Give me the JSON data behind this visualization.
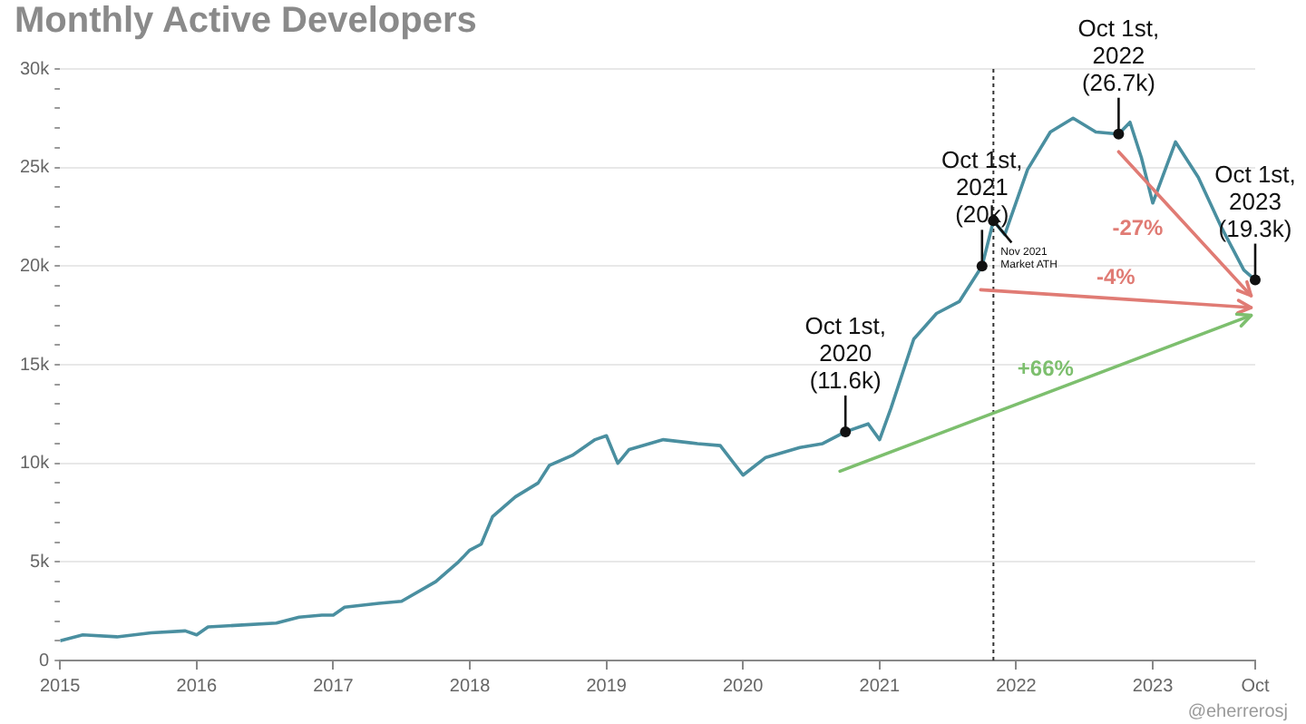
{
  "chart_data": {
    "type": "line",
    "title": "Monthly Active Developers",
    "x": [
      "2015-01",
      "2015-03",
      "2015-06",
      "2015-09",
      "2015-12",
      "2016-01",
      "2016-02",
      "2016-05",
      "2016-08",
      "2016-10",
      "2016-12",
      "2017-01",
      "2017-02",
      "2017-05",
      "2017-07",
      "2017-10",
      "2017-12",
      "2018-01",
      "2018-02",
      "2018-03",
      "2018-05",
      "2018-07",
      "2018-08",
      "2018-10",
      "2018-12",
      "2019-01",
      "2019-02",
      "2019-03",
      "2019-06",
      "2019-09",
      "2019-11",
      "2020-01",
      "2020-03",
      "2020-06",
      "2020-08",
      "2020-10",
      "2020-12",
      "2021-01",
      "2021-02",
      "2021-04",
      "2021-06",
      "2021-08",
      "2021-10",
      "2021-11",
      "2021-12",
      "2022-02",
      "2022-04",
      "2022-06",
      "2022-08",
      "2022-10",
      "2022-11",
      "2022-12",
      "2023-01",
      "2023-03",
      "2023-05",
      "2023-07",
      "2023-09",
      "2023-10"
    ],
    "series": [
      {
        "color": "#4a8fa0",
        "values": [
          1000,
          1300,
          1200,
          1400,
          1500,
          1300,
          1700,
          1800,
          1900,
          2200,
          2300,
          2300,
          2700,
          2900,
          3000,
          4000,
          5000,
          5600,
          5900,
          7300,
          8300,
          9000,
          9900,
          10400,
          11200,
          11400,
          10000,
          10700,
          11200,
          11000,
          10900,
          9400,
          10300,
          10800,
          11000,
          11600,
          12000,
          11200,
          12800,
          16300,
          17600,
          18200,
          20000,
          22300,
          21600,
          24900,
          26800,
          27500,
          26800,
          26700,
          27300,
          25500,
          23200,
          26300,
          24500,
          22000,
          19800,
          19300
        ]
      }
    ],
    "xlim": [
      "2015",
      "2023-10"
    ],
    "xticks": [
      "2015",
      "2016",
      "2017",
      "2018",
      "2019",
      "2020",
      "2021",
      "2022",
      "2023",
      {
        "value": "2023-10",
        "label": "Oct"
      }
    ],
    "ylim": [
      0,
      30000
    ],
    "yticks": [
      0,
      {
        "value": 1000,
        "label": null
      },
      {
        "value": 2000,
        "label": null
      },
      {
        "value": 3000,
        "label": null
      },
      {
        "value": 4000,
        "label": null
      },
      {
        "value": 5000,
        "label": "5k"
      },
      {
        "value": 6000,
        "label": null
      },
      {
        "value": 7000,
        "label": null
      },
      {
        "value": 8000,
        "label": null
      },
      {
        "value": 9000,
        "label": null
      },
      {
        "value": 10000,
        "label": "10k"
      },
      {
        "value": 11000,
        "label": null
      },
      {
        "value": 12000,
        "label": null
      },
      {
        "value": 13000,
        "label": null
      },
      {
        "value": 14000,
        "label": null
      },
      {
        "value": 15000,
        "label": "15k"
      },
      {
        "value": 16000,
        "label": null
      },
      {
        "value": 17000,
        "label": null
      },
      {
        "value": 18000,
        "label": null
      },
      {
        "value": 19000,
        "label": null
      },
      {
        "value": 20000,
        "label": "20k"
      },
      {
        "value": 21000,
        "label": null
      },
      {
        "value": 22000,
        "label": null
      },
      {
        "value": 23000,
        "label": null
      },
      {
        "value": 24000,
        "label": null
      },
      {
        "value": 25000,
        "label": "25k"
      },
      {
        "value": 26000,
        "label": null
      },
      {
        "value": 27000,
        "label": null
      },
      {
        "value": 28000,
        "label": null
      },
      {
        "value": 29000,
        "label": null
      },
      {
        "value": 30000,
        "label": "30k"
      }
    ],
    "grid": "y",
    "marker": "none",
    "ref_lines": [
      {
        "axis": "x",
        "value": "2021-11",
        "line_style": "dotted",
        "color": "#333333"
      }
    ],
    "annotations": [
      {
        "text": "Oct 1st,\n2020\n(11.6k)",
        "x": "2020-10",
        "y": 11600
      },
      {
        "text": "Oct 1st,\n2021\n(20k)",
        "x": "2021-10",
        "y": 20000
      },
      {
        "text": "Nov 2021\nMarket ATH",
        "x": "2021-11",
        "y": 22300
      },
      {
        "text": "Oct 1st,\n2022\n(26.7k)",
        "x": "2022-10",
        "y": 26700
      },
      {
        "text": "Oct 1st,\n2023\n(19.3k)",
        "x": "2023-10",
        "y": 19300
      },
      "-27%",
      "-4%",
      "+66%",
      "@eherrerosj"
    ]
  }
}
